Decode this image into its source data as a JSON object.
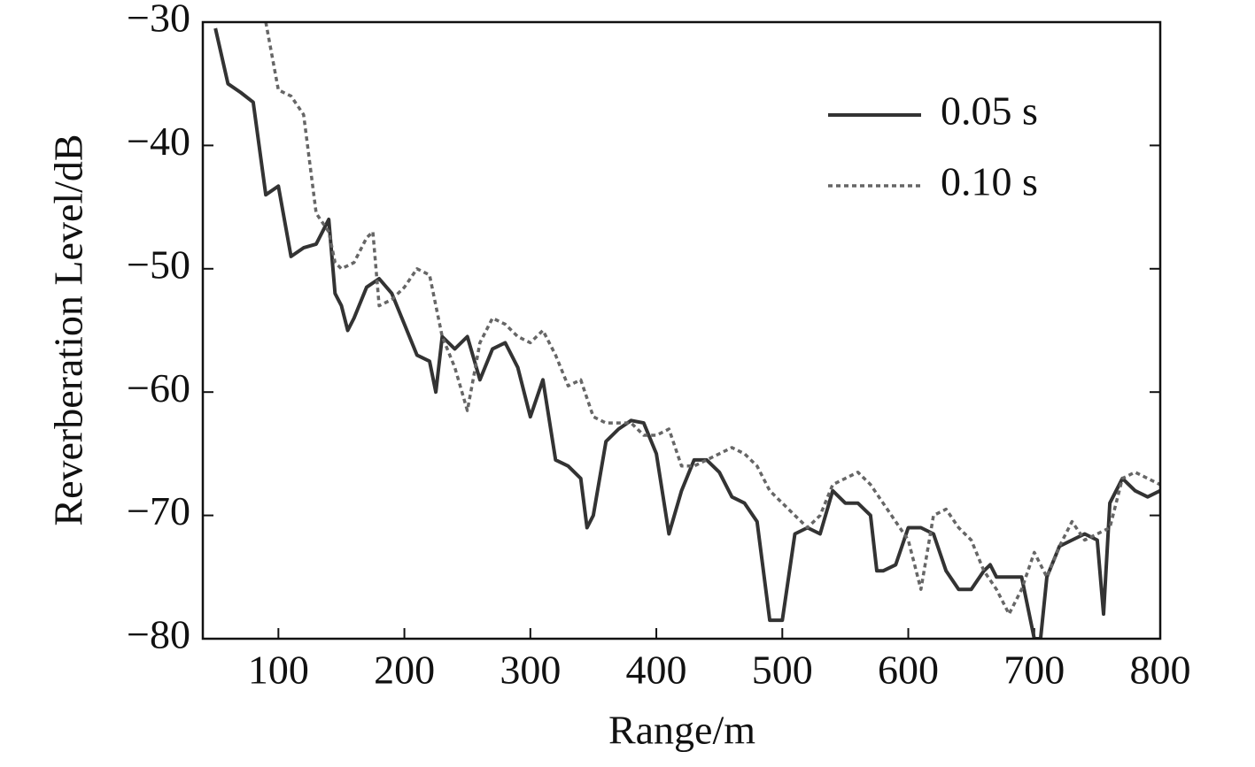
{
  "chart_data": {
    "type": "line",
    "xlabel": "Range/m",
    "ylabel": "Reverberation Level/dB",
    "xlim": [
      40,
      800
    ],
    "xticks": [
      100,
      200,
      300,
      400,
      500,
      600,
      700,
      800
    ],
    "ylim": [
      -80,
      -30
    ],
    "yticks": [
      {
        "value": -80,
        "label": "−80"
      },
      {
        "value": -70,
        "label": "−70"
      },
      {
        "value": -60,
        "label": "−60"
      },
      {
        "value": -50,
        "label": "−50"
      },
      {
        "value": -40,
        "label": "−40"
      },
      {
        "value": -30,
        "label": "−30"
      }
    ],
    "legend": "upper right",
    "grid": false,
    "series": [
      {
        "name": "0.05 s",
        "color": "#333333",
        "dash": "solid",
        "x": [
          50,
          60,
          70,
          80,
          90,
          100,
          110,
          120,
          130,
          140,
          145,
          150,
          155,
          160,
          170,
          180,
          190,
          200,
          210,
          220,
          225,
          230,
          240,
          250,
          260,
          270,
          280,
          290,
          300,
          310,
          320,
          330,
          340,
          345,
          350,
          360,
          370,
          380,
          390,
          400,
          410,
          420,
          430,
          440,
          450,
          460,
          470,
          480,
          490,
          500,
          510,
          520,
          530,
          540,
          550,
          560,
          570,
          575,
          580,
          590,
          600,
          610,
          620,
          630,
          640,
          650,
          660,
          665,
          670,
          690,
          700,
          705,
          710,
          720,
          730,
          740,
          750,
          755,
          760,
          770,
          780,
          790,
          800
        ],
        "values": [
          -30.5,
          -35,
          -35.7,
          -36.5,
          -44,
          -43.3,
          -49,
          -48.3,
          -48,
          -46,
          -52,
          -53,
          -55,
          -54,
          -51.5,
          -50.8,
          -52,
          -54.5,
          -57,
          -57.5,
          -60,
          -55.5,
          -56.5,
          -55.5,
          -59,
          -56.5,
          -56,
          -58,
          -62,
          -59,
          -65.5,
          -66,
          -67,
          -71,
          -70,
          -64,
          -63,
          -62.3,
          -62.5,
          -65,
          -71.5,
          -68,
          -65.5,
          -65.5,
          -66.5,
          -68.5,
          -69,
          -70.5,
          -78.5,
          -78.5,
          -71.5,
          -71,
          -71.5,
          -68,
          -69,
          -69,
          -70,
          -74.5,
          -74.5,
          -74,
          -71,
          -71,
          -71.5,
          -74.5,
          -76,
          -76,
          -74.5,
          -74,
          -75,
          -75,
          -80,
          -80,
          -75,
          -72.5,
          -72,
          -71.5,
          -72,
          -78,
          -69,
          -67,
          -68,
          -68.5,
          -68
        ]
      },
      {
        "name": "0.10 s",
        "color": "#666666",
        "dash": "dotted",
        "x": [
          90,
          100,
          110,
          120,
          130,
          140,
          145,
          150,
          160,
          170,
          175,
          180,
          190,
          200,
          210,
          220,
          230,
          240,
          250,
          260,
          270,
          280,
          290,
          300,
          310,
          320,
          330,
          340,
          350,
          360,
          370,
          380,
          390,
          400,
          410,
          420,
          430,
          440,
          450,
          460,
          470,
          480,
          490,
          500,
          510,
          520,
          530,
          540,
          550,
          560,
          570,
          580,
          590,
          600,
          610,
          620,
          630,
          640,
          650,
          660,
          670,
          680,
          690,
          700,
          710,
          720,
          730,
          740,
          750,
          760,
          770,
          780,
          790,
          800
        ],
        "values": [
          -30,
          -35.5,
          -36,
          -37.5,
          -45.5,
          -47,
          -49.5,
          -50,
          -49.5,
          -47.5,
          -47,
          -53,
          -52.5,
          -51.5,
          -50,
          -50.5,
          -55.5,
          -58,
          -61.5,
          -56,
          -54,
          -54.5,
          -55.5,
          -56,
          -55,
          -57,
          -59.5,
          -59,
          -62,
          -62.5,
          -62.5,
          -62.5,
          -63.5,
          -63.5,
          -63,
          -66,
          -66,
          -65.5,
          -65,
          -64.5,
          -65,
          -66,
          -68,
          -69,
          -70,
          -71,
          -70,
          -67.5,
          -67,
          -66.5,
          -67.5,
          -69,
          -70.5,
          -72,
          -76,
          -70,
          -69.5,
          -71,
          -72,
          -74.5,
          -76,
          -78,
          -76,
          -73,
          -75,
          -72.5,
          -70.5,
          -72,
          -71.5,
          -71,
          -67,
          -66.5,
          -67,
          -67.5
        ]
      }
    ]
  }
}
